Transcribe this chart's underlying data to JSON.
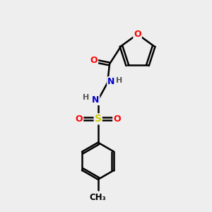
{
  "bg_color": "#eeeeee",
  "atom_colors": {
    "C": "#000000",
    "O": "#ff0000",
    "N": "#0000cc",
    "S": "#cccc00",
    "H": "#555555"
  },
  "bond_color": "#000000",
  "bond_width": 1.8,
  "dbo": 0.07,
  "figsize": [
    3.0,
    3.0
  ],
  "dpi": 100
}
